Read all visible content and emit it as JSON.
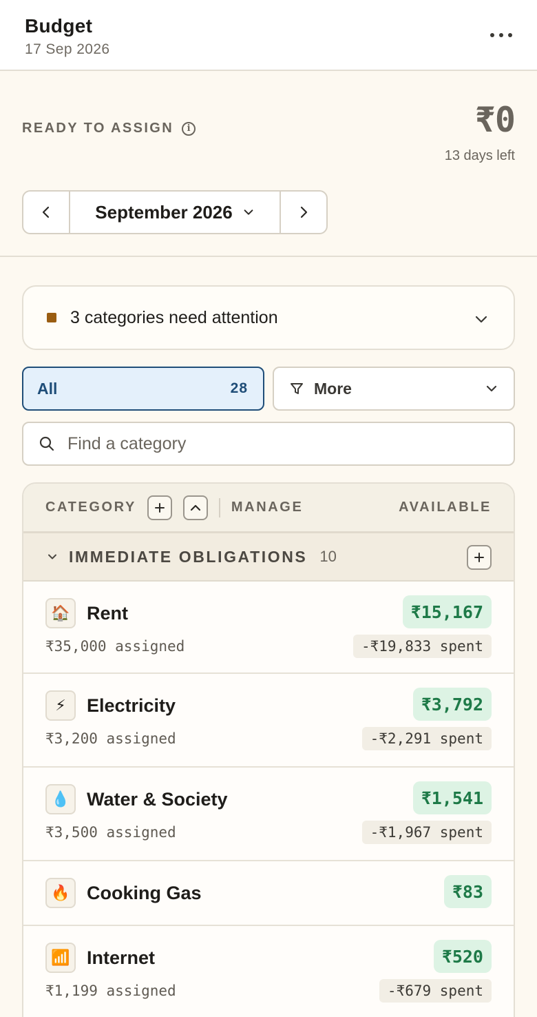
{
  "header": {
    "title": "Budget",
    "date": "17 Sep 2026"
  },
  "ready_to_assign": {
    "label": "READY TO ASSIGN",
    "amount": "₹0",
    "days_left": "13 days left"
  },
  "month_nav": {
    "month": "September 2026"
  },
  "attention": {
    "text": "3 categories need attention"
  },
  "filters": {
    "all_label": "All",
    "all_count": "28",
    "more_label": "More"
  },
  "search": {
    "placeholder": "Find a category"
  },
  "table_header": {
    "category": "CATEGORY",
    "manage": "MANAGE",
    "available": "AVAILABLE"
  },
  "group": {
    "name": "IMMEDIATE OBLIGATIONS",
    "count": "10"
  },
  "rows": [
    {
      "emoji": "🏠",
      "name": "Rent",
      "available": "₹15,167",
      "assigned": "₹35,000 assigned",
      "spent": "-₹19,833 spent"
    },
    {
      "emoji": "⚡",
      "name": "Electricity",
      "available": "₹3,792",
      "assigned": "₹3,200 assigned",
      "spent": "-₹2,291 spent"
    },
    {
      "emoji": "💧",
      "name": "Water & Society",
      "available": "₹1,541",
      "assigned": "₹3,500 assigned",
      "spent": "-₹1,967 spent"
    },
    {
      "emoji": "🔥",
      "name": "Cooking Gas",
      "available": "₹83"
    },
    {
      "emoji": "📶",
      "name": "Internet",
      "available": "₹520",
      "assigned": "₹1,199 assigned",
      "spent": "-₹679 spent"
    }
  ],
  "colors": {
    "accent": "#1f4d78",
    "available_bg": "#ddf3e4",
    "available_text": "#1e7a48",
    "attention": "#9a5d12"
  }
}
